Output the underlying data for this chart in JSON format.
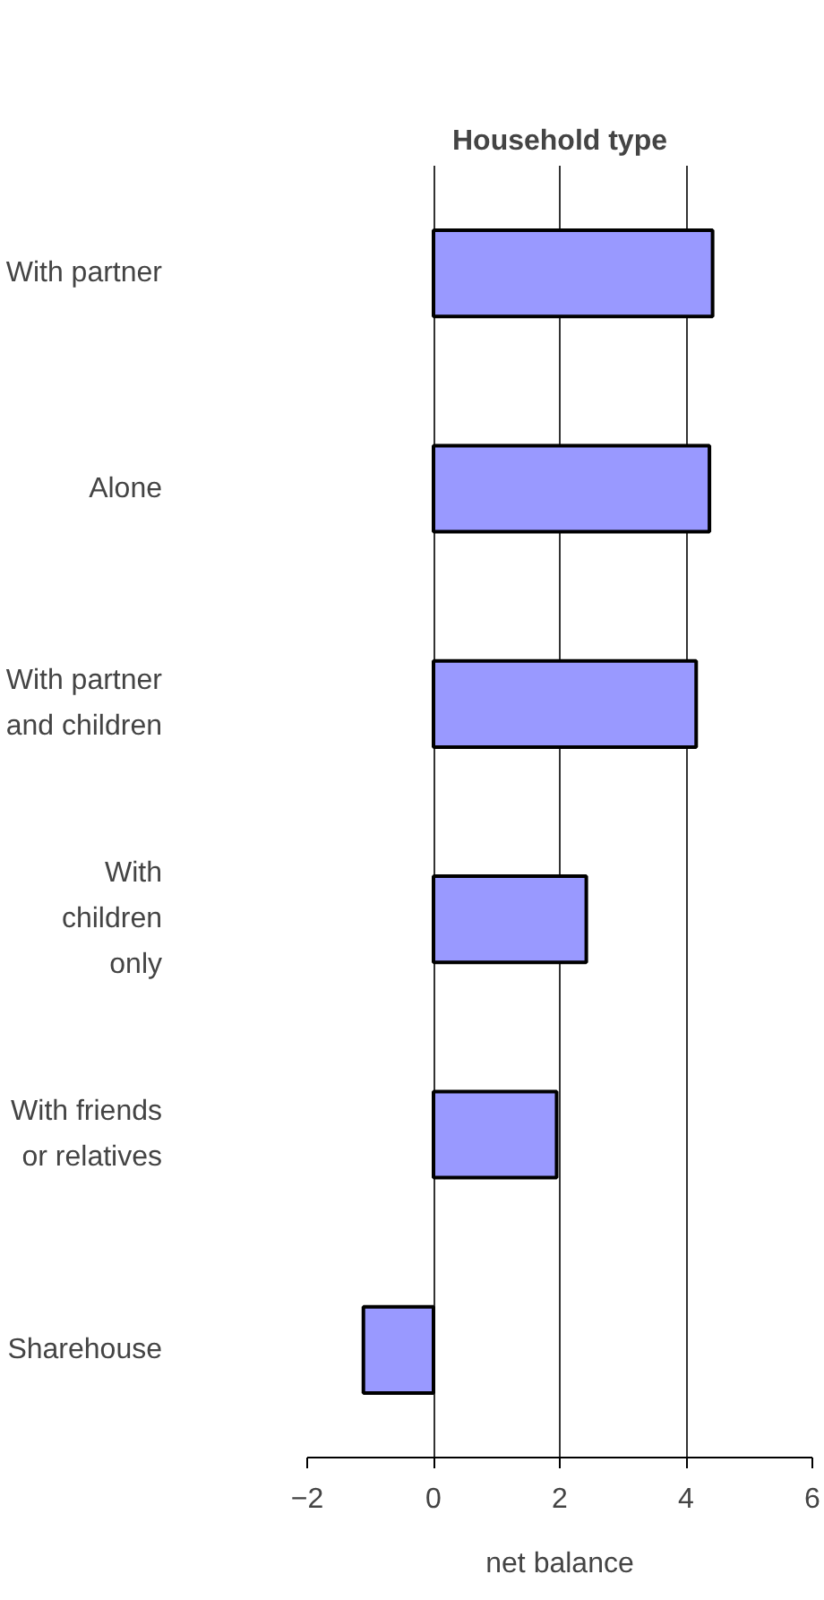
{
  "chart_data": {
    "type": "bar",
    "orientation": "horizontal",
    "title": "Household type",
    "xlabel": "net balance",
    "categories": [
      "With partner",
      "Alone",
      "With partner\nand children",
      "With\nchildren\nonly",
      "With friends\nor relatives",
      "Sharehouse"
    ],
    "values": [
      4.42,
      4.37,
      4.16,
      2.42,
      1.95,
      -1.11
    ],
    "color": "#9999ff",
    "xlim": [
      -2,
      6
    ],
    "xticks": [
      -2,
      0,
      2,
      4,
      6
    ],
    "grid": "x"
  }
}
